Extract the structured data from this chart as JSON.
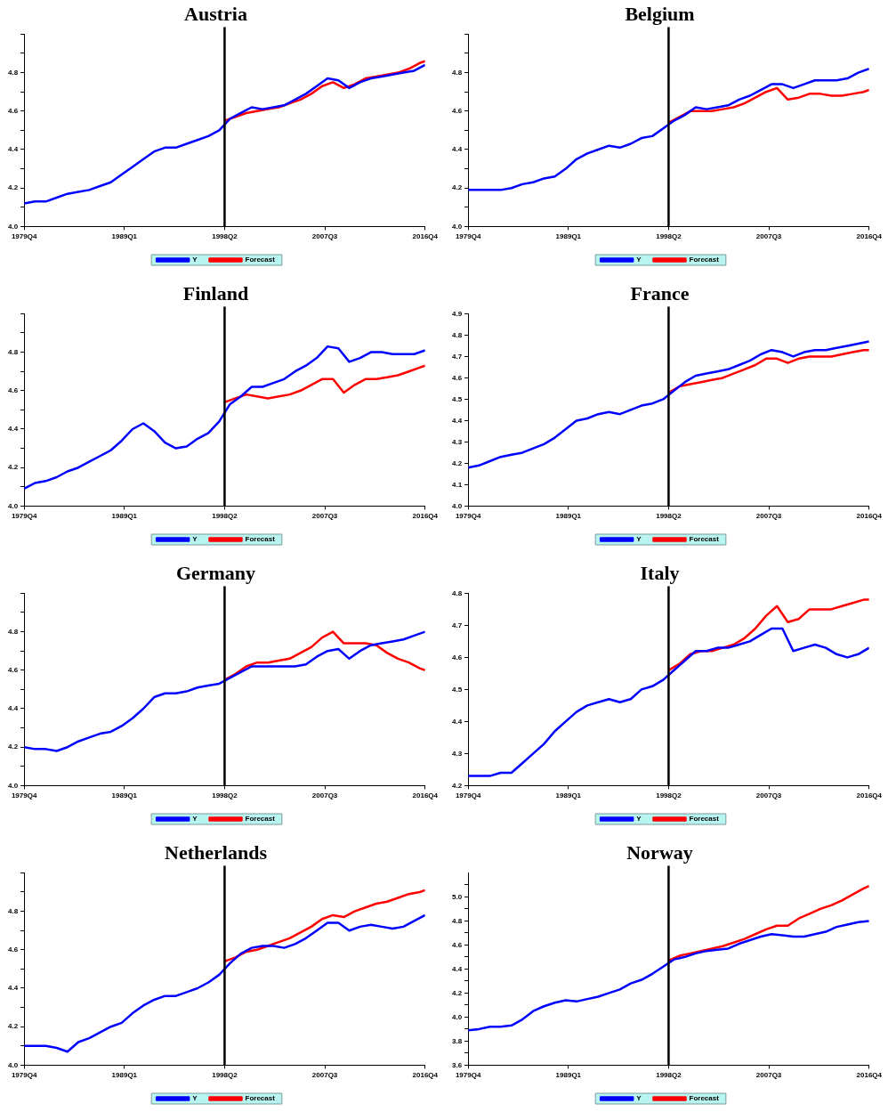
{
  "chart_data": [
    {
      "type": "line",
      "title": "Austria",
      "x": [
        "1979-10",
        "1980-10",
        "1981-10",
        "1982-10",
        "1983-10",
        "1984-10",
        "1985-10",
        "1986-10",
        "1987-10",
        "1988-10",
        "1989-10",
        "1990-10",
        "1991-10",
        "1992-10",
        "1993-10",
        "1994-10",
        "1995-10",
        "1996-10",
        "1997-10",
        "1998-10",
        "1999-10",
        "2000-10",
        "2001-10",
        "2002-10",
        "2003-10",
        "2004-10",
        "2005-10",
        "2006-10",
        "2007-10",
        "2008-10",
        "2009-10",
        "2010-10",
        "2011-10",
        "2012-10",
        "2013-10",
        "2014-10",
        "2015-10",
        "2016-10"
      ],
      "xlim": [
        "1979-10",
        "2016-10"
      ],
      "xticks": [
        {
          "value": "1979-10",
          "label": "1979Q4"
        },
        {
          "value": "1989-01",
          "label": "1989Q1"
        },
        {
          "value": "1998-04",
          "label": "1998Q2"
        },
        {
          "value": "2007-07",
          "label": "2007Q3"
        },
        {
          "value": "2016-10",
          "label": "2016Q4"
        }
      ],
      "ylim": [
        4,
        5
      ],
      "yticks": [
        {
          "value": 4,
          "label": "4.0"
        },
        {
          "value": 4.1,
          "label": null
        },
        4.2,
        {
          "value": 4.3,
          "label": null
        },
        4.4,
        {
          "value": 4.5,
          "label": null
        },
        4.6,
        {
          "value": 4.7,
          "label": null
        },
        4.8,
        {
          "value": 4.9,
          "label": null
        },
        {
          "value": 5,
          "label": null
        }
      ],
      "grid": false,
      "legend": "bottom",
      "marker": "none",
      "line_style": "solid",
      "ref_lines": [
        {
          "axis": "x",
          "value": "1998-04",
          "color": "#000000"
        }
      ],
      "series": [
        {
          "name": "Y",
          "color": "#0000ff",
          "values": [
            4.12,
            4.13,
            4.13,
            4.15,
            4.17,
            4.18,
            4.19,
            4.21,
            4.23,
            4.27,
            4.31,
            4.35,
            4.39,
            4.41,
            4.41,
            4.43,
            4.45,
            4.47,
            4.5,
            4.56,
            4.59,
            4.62,
            4.61,
            4.62,
            4.63,
            4.66,
            4.69,
            4.73,
            4.77,
            4.76,
            4.72,
            4.75,
            4.77,
            4.78,
            4.79,
            4.8,
            4.81,
            4.84
          ]
        },
        {
          "name": "Forecast",
          "color": "#ff0000",
          "x": [
            "1998-04",
            "1999-04",
            "2000-04",
            "2001-04",
            "2002-04",
            "2003-04",
            "2004-04",
            "2005-04",
            "2006-04",
            "2007-04",
            "2008-04",
            "2009-04",
            "2010-04",
            "2011-04",
            "2012-04",
            "2013-04",
            "2014-04",
            "2015-04",
            "2016-04",
            "2016-10"
          ],
          "values": [
            4.55,
            4.57,
            4.59,
            4.6,
            4.61,
            4.62,
            4.64,
            4.66,
            4.69,
            4.73,
            4.75,
            4.72,
            4.74,
            4.77,
            4.78,
            4.79,
            4.8,
            4.82,
            4.85,
            4.86
          ]
        }
      ]
    },
    {
      "type": "line",
      "title": "Belgium",
      "x": [
        "1979-10",
        "1980-10",
        "1981-10",
        "1982-10",
        "1983-10",
        "1984-10",
        "1985-10",
        "1986-10",
        "1987-10",
        "1988-10",
        "1989-10",
        "1990-10",
        "1991-10",
        "1992-10",
        "1993-10",
        "1994-10",
        "1995-10",
        "1996-10",
        "1997-10",
        "1998-10",
        "1999-10",
        "2000-10",
        "2001-10",
        "2002-10",
        "2003-10",
        "2004-10",
        "2005-10",
        "2006-10",
        "2007-10",
        "2008-10",
        "2009-10",
        "2010-10",
        "2011-10",
        "2012-10",
        "2013-10",
        "2014-10",
        "2015-10",
        "2016-10"
      ],
      "xlim": [
        "1979-10",
        "2016-10"
      ],
      "xticks": [
        {
          "value": "1979-10",
          "label": "1979Q4"
        },
        {
          "value": "1989-01",
          "label": "1989Q1"
        },
        {
          "value": "1998-04",
          "label": "1998Q2"
        },
        {
          "value": "2007-07",
          "label": "2007Q3"
        },
        {
          "value": "2016-10",
          "label": "2016Q4"
        }
      ],
      "ylim": [
        4,
        5
      ],
      "yticks": [
        {
          "value": 4,
          "label": "4.0"
        },
        {
          "value": 4.1,
          "label": null
        },
        4.2,
        {
          "value": 4.3,
          "label": null
        },
        4.4,
        {
          "value": 4.5,
          "label": null
        },
        4.6,
        {
          "value": 4.7,
          "label": null
        },
        4.8,
        {
          "value": 4.9,
          "label": null
        },
        {
          "value": 5,
          "label": null
        }
      ],
      "grid": false,
      "legend": "bottom",
      "marker": "none",
      "line_style": "solid",
      "ref_lines": [
        {
          "axis": "x",
          "value": "1998-04",
          "color": "#000000"
        }
      ],
      "series": [
        {
          "name": "Y",
          "color": "#0000ff",
          "values": [
            4.19,
            4.19,
            4.19,
            4.19,
            4.2,
            4.22,
            4.23,
            4.25,
            4.26,
            4.3,
            4.35,
            4.38,
            4.4,
            4.42,
            4.41,
            4.43,
            4.46,
            4.47,
            4.51,
            4.55,
            4.58,
            4.62,
            4.61,
            4.62,
            4.63,
            4.66,
            4.68,
            4.71,
            4.74,
            4.74,
            4.72,
            4.74,
            4.76,
            4.76,
            4.76,
            4.77,
            4.8,
            4.82
          ]
        },
        {
          "name": "Forecast",
          "color": "#ff0000",
          "x": [
            "1998-04",
            "1999-04",
            "2000-04",
            "2001-04",
            "2002-04",
            "2003-04",
            "2004-04",
            "2005-04",
            "2006-04",
            "2007-04",
            "2008-04",
            "2009-04",
            "2010-04",
            "2011-04",
            "2012-04",
            "2013-04",
            "2014-04",
            "2015-04",
            "2016-04",
            "2016-10"
          ],
          "values": [
            4.54,
            4.57,
            4.6,
            4.6,
            4.6,
            4.61,
            4.62,
            4.64,
            4.67,
            4.7,
            4.72,
            4.66,
            4.67,
            4.69,
            4.69,
            4.68,
            4.68,
            4.69,
            4.7,
            4.71
          ]
        }
      ]
    },
    {
      "type": "line",
      "title": "Finland",
      "x": [
        "1979-10",
        "1980-10",
        "1981-10",
        "1982-10",
        "1983-10",
        "1984-10",
        "1985-10",
        "1986-10",
        "1987-10",
        "1988-10",
        "1989-10",
        "1990-10",
        "1991-10",
        "1992-10",
        "1993-10",
        "1994-10",
        "1995-10",
        "1996-10",
        "1997-10",
        "1998-10",
        "1999-10",
        "2000-10",
        "2001-10",
        "2002-10",
        "2003-10",
        "2004-10",
        "2005-10",
        "2006-10",
        "2007-10",
        "2008-10",
        "2009-10",
        "2010-10",
        "2011-10",
        "2012-10",
        "2013-10",
        "2014-10",
        "2015-10",
        "2016-10"
      ],
      "xlim": [
        "1979-10",
        "2016-10"
      ],
      "xticks": [
        {
          "value": "1979-10",
          "label": "1979Q4"
        },
        {
          "value": "1989-01",
          "label": "1989Q1"
        },
        {
          "value": "1998-04",
          "label": "1998Q2"
        },
        {
          "value": "2007-07",
          "label": "2007Q3"
        },
        {
          "value": "2016-10",
          "label": "2016Q4"
        }
      ],
      "ylim": [
        4,
        5
      ],
      "yticks": [
        {
          "value": 4,
          "label": "4.0"
        },
        {
          "value": 4.1,
          "label": null
        },
        4.2,
        {
          "value": 4.3,
          "label": null
        },
        4.4,
        {
          "value": 4.5,
          "label": null
        },
        4.6,
        {
          "value": 4.7,
          "label": null
        },
        4.8,
        {
          "value": 4.9,
          "label": null
        },
        {
          "value": 5,
          "label": null
        }
      ],
      "grid": false,
      "legend": "bottom",
      "marker": "none",
      "line_style": "solid",
      "ref_lines": [
        {
          "axis": "x",
          "value": "1998-04",
          "color": "#000000"
        }
      ],
      "series": [
        {
          "name": "Y",
          "color": "#0000ff",
          "values": [
            4.09,
            4.12,
            4.13,
            4.15,
            4.18,
            4.2,
            4.23,
            4.26,
            4.29,
            4.34,
            4.4,
            4.43,
            4.39,
            4.33,
            4.3,
            4.31,
            4.35,
            4.38,
            4.44,
            4.53,
            4.57,
            4.62,
            4.62,
            4.64,
            4.66,
            4.7,
            4.73,
            4.77,
            4.83,
            4.82,
            4.75,
            4.77,
            4.8,
            4.8,
            4.79,
            4.79,
            4.79,
            4.81
          ]
        },
        {
          "name": "Forecast",
          "color": "#ff0000",
          "x": [
            "1998-04",
            "1999-04",
            "2000-04",
            "2001-04",
            "2002-04",
            "2003-04",
            "2004-04",
            "2005-04",
            "2006-04",
            "2007-04",
            "2008-04",
            "2009-04",
            "2010-04",
            "2011-04",
            "2012-04",
            "2013-04",
            "2014-04",
            "2015-04",
            "2016-04",
            "2016-10"
          ],
          "values": [
            4.54,
            4.56,
            4.58,
            4.57,
            4.56,
            4.57,
            4.58,
            4.6,
            4.63,
            4.66,
            4.66,
            4.59,
            4.63,
            4.66,
            4.66,
            4.67,
            4.68,
            4.7,
            4.72,
            4.73
          ]
        }
      ]
    },
    {
      "type": "line",
      "title": "France",
      "x": [
        "1979-10",
        "1980-10",
        "1981-10",
        "1982-10",
        "1983-10",
        "1984-10",
        "1985-10",
        "1986-10",
        "1987-10",
        "1988-10",
        "1989-10",
        "1990-10",
        "1991-10",
        "1992-10",
        "1993-10",
        "1994-10",
        "1995-10",
        "1996-10",
        "1997-10",
        "1998-10",
        "1999-10",
        "2000-10",
        "2001-10",
        "2002-10",
        "2003-10",
        "2004-10",
        "2005-10",
        "2006-10",
        "2007-10",
        "2008-10",
        "2009-10",
        "2010-10",
        "2011-10",
        "2012-10",
        "2013-10",
        "2014-10",
        "2015-10",
        "2016-10"
      ],
      "xlim": [
        "1979-10",
        "2016-10"
      ],
      "xticks": [
        {
          "value": "1979-10",
          "label": "1979Q4"
        },
        {
          "value": "1989-01",
          "label": "1989Q1"
        },
        {
          "value": "1998-04",
          "label": "1998Q2"
        },
        {
          "value": "2007-07",
          "label": "2007Q3"
        },
        {
          "value": "2016-10",
          "label": "2016Q4"
        }
      ],
      "ylim": [
        4,
        4.9
      ],
      "yticks": [
        {
          "value": 4,
          "label": "4.0"
        },
        4.1,
        4.2,
        4.3,
        4.4,
        4.5,
        4.6,
        4.7,
        4.8,
        4.9
      ],
      "grid": false,
      "legend": "bottom",
      "marker": "none",
      "line_style": "solid",
      "ref_lines": [
        {
          "axis": "x",
          "value": "1998-04",
          "color": "#000000"
        }
      ],
      "series": [
        {
          "name": "Y",
          "color": "#0000ff",
          "values": [
            4.18,
            4.19,
            4.21,
            4.23,
            4.24,
            4.25,
            4.27,
            4.29,
            4.32,
            4.36,
            4.4,
            4.41,
            4.43,
            4.44,
            4.43,
            4.45,
            4.47,
            4.48,
            4.5,
            4.54,
            4.58,
            4.61,
            4.62,
            4.63,
            4.64,
            4.66,
            4.68,
            4.71,
            4.73,
            4.72,
            4.7,
            4.72,
            4.73,
            4.73,
            4.74,
            4.75,
            4.76,
            4.77
          ]
        },
        {
          "name": "Forecast",
          "color": "#ff0000",
          "x": [
            "1998-04",
            "1999-04",
            "2000-04",
            "2001-04",
            "2002-04",
            "2003-04",
            "2004-04",
            "2005-04",
            "2006-04",
            "2007-04",
            "2008-04",
            "2009-04",
            "2010-04",
            "2011-04",
            "2012-04",
            "2013-04",
            "2014-04",
            "2015-04",
            "2016-04",
            "2016-10"
          ],
          "values": [
            4.53,
            4.56,
            4.57,
            4.58,
            4.59,
            4.6,
            4.62,
            4.64,
            4.66,
            4.69,
            4.69,
            4.67,
            4.69,
            4.7,
            4.7,
            4.7,
            4.71,
            4.72,
            4.73,
            4.73
          ]
        }
      ]
    },
    {
      "type": "line",
      "title": "Germany",
      "x": [
        "1979-10",
        "1980-10",
        "1981-10",
        "1982-10",
        "1983-10",
        "1984-10",
        "1985-10",
        "1986-10",
        "1987-10",
        "1988-10",
        "1989-10",
        "1990-10",
        "1991-10",
        "1992-10",
        "1993-10",
        "1994-10",
        "1995-10",
        "1996-10",
        "1997-10",
        "1998-10",
        "1999-10",
        "2000-10",
        "2001-10",
        "2002-10",
        "2003-10",
        "2004-10",
        "2005-10",
        "2006-10",
        "2007-10",
        "2008-10",
        "2009-10",
        "2010-10",
        "2011-10",
        "2012-10",
        "2013-10",
        "2014-10",
        "2015-10",
        "2016-10"
      ],
      "xlim": [
        "1979-10",
        "2016-10"
      ],
      "xticks": [
        {
          "value": "1979-10",
          "label": "1979Q4"
        },
        {
          "value": "1989-01",
          "label": "1989Q1"
        },
        {
          "value": "1998-04",
          "label": "1998Q2"
        },
        {
          "value": "2007-07",
          "label": "2007Q3"
        },
        {
          "value": "2016-10",
          "label": "2016Q4"
        }
      ],
      "ylim": [
        4,
        5
      ],
      "yticks": [
        {
          "value": 4,
          "label": "4.0"
        },
        {
          "value": 4.1,
          "label": null
        },
        4.2,
        {
          "value": 4.3,
          "label": null
        },
        4.4,
        {
          "value": 4.5,
          "label": null
        },
        4.6,
        {
          "value": 4.7,
          "label": null
        },
        4.8,
        {
          "value": 4.9,
          "label": null
        },
        {
          "value": 5,
          "label": null
        }
      ],
      "grid": false,
      "legend": "bottom",
      "marker": "none",
      "line_style": "solid",
      "ref_lines": [
        {
          "axis": "x",
          "value": "1998-04",
          "color": "#000000"
        }
      ],
      "series": [
        {
          "name": "Y",
          "color": "#0000ff",
          "values": [
            4.2,
            4.19,
            4.19,
            4.18,
            4.2,
            4.23,
            4.25,
            4.27,
            4.28,
            4.31,
            4.35,
            4.4,
            4.46,
            4.48,
            4.48,
            4.49,
            4.51,
            4.52,
            4.53,
            4.56,
            4.59,
            4.62,
            4.62,
            4.62,
            4.62,
            4.62,
            4.63,
            4.67,
            4.7,
            4.71,
            4.66,
            4.7,
            4.73,
            4.74,
            4.75,
            4.76,
            4.78,
            4.8
          ]
        },
        {
          "name": "Forecast",
          "color": "#ff0000",
          "x": [
            "1998-04",
            "1999-04",
            "2000-04",
            "2001-04",
            "2002-04",
            "2003-04",
            "2004-04",
            "2005-04",
            "2006-04",
            "2007-04",
            "2008-04",
            "2009-04",
            "2010-04",
            "2011-04",
            "2012-04",
            "2013-04",
            "2014-04",
            "2015-04",
            "2016-04",
            "2016-10"
          ],
          "values": [
            4.55,
            4.58,
            4.62,
            4.64,
            4.64,
            4.65,
            4.66,
            4.69,
            4.72,
            4.77,
            4.8,
            4.74,
            4.74,
            4.74,
            4.73,
            4.69,
            4.66,
            4.64,
            4.61,
            4.6
          ]
        }
      ]
    },
    {
      "type": "line",
      "title": "Italy",
      "x": [
        "1979-10",
        "1980-10",
        "1981-10",
        "1982-10",
        "1983-10",
        "1984-10",
        "1985-10",
        "1986-10",
        "1987-10",
        "1988-10",
        "1989-10",
        "1990-10",
        "1991-10",
        "1992-10",
        "1993-10",
        "1994-10",
        "1995-10",
        "1996-10",
        "1997-10",
        "1998-10",
        "1999-10",
        "2000-10",
        "2001-10",
        "2002-10",
        "2003-10",
        "2004-10",
        "2005-10",
        "2006-10",
        "2007-10",
        "2008-10",
        "2009-10",
        "2010-10",
        "2011-10",
        "2012-10",
        "2013-10",
        "2014-10",
        "2015-10",
        "2016-10"
      ],
      "xlim": [
        "1979-10",
        "2016-10"
      ],
      "xticks": [
        {
          "value": "1979-10",
          "label": "1979Q4"
        },
        {
          "value": "1989-01",
          "label": "1989Q1"
        },
        {
          "value": "1998-04",
          "label": "1998Q2"
        },
        {
          "value": "2007-07",
          "label": "2007Q3"
        },
        {
          "value": "2016-10",
          "label": "2016Q4"
        }
      ],
      "ylim": [
        4.2,
        4.8
      ],
      "yticks": [
        4.2,
        4.3,
        4.4,
        4.5,
        4.6,
        4.7,
        4.8
      ],
      "grid": false,
      "legend": "bottom",
      "marker": "none",
      "line_style": "solid",
      "ref_lines": [
        {
          "axis": "x",
          "value": "1998-04",
          "color": "#000000"
        }
      ],
      "series": [
        {
          "name": "Y",
          "color": "#0000ff",
          "values": [
            4.23,
            4.23,
            4.23,
            4.24,
            4.24,
            4.27,
            4.3,
            4.33,
            4.37,
            4.4,
            4.43,
            4.45,
            4.46,
            4.47,
            4.46,
            4.47,
            4.5,
            4.51,
            4.53,
            4.56,
            4.59,
            4.62,
            4.62,
            4.63,
            4.63,
            4.64,
            4.65,
            4.67,
            4.69,
            4.69,
            4.62,
            4.63,
            4.64,
            4.63,
            4.61,
            4.6,
            4.61,
            4.63
          ]
        },
        {
          "name": "Forecast",
          "color": "#ff0000",
          "x": [
            "1998-04",
            "1999-04",
            "2000-04",
            "2001-04",
            "2002-04",
            "2003-04",
            "2004-04",
            "2005-04",
            "2006-04",
            "2007-04",
            "2008-04",
            "2009-04",
            "2010-04",
            "2011-04",
            "2012-04",
            "2013-04",
            "2014-04",
            "2015-04",
            "2016-04",
            "2016-10"
          ],
          "values": [
            4.56,
            4.58,
            4.61,
            4.62,
            4.62,
            4.63,
            4.64,
            4.66,
            4.69,
            4.73,
            4.76,
            4.71,
            4.72,
            4.75,
            4.75,
            4.75,
            4.76,
            4.77,
            4.78,
            4.78
          ]
        }
      ]
    },
    {
      "type": "line",
      "title": "Netherlands",
      "x": [
        "1979-10",
        "1980-10",
        "1981-10",
        "1982-10",
        "1983-10",
        "1984-10",
        "1985-10",
        "1986-10",
        "1987-10",
        "1988-10",
        "1989-10",
        "1990-10",
        "1991-10",
        "1992-10",
        "1993-10",
        "1994-10",
        "1995-10",
        "1996-10",
        "1997-10",
        "1998-10",
        "1999-10",
        "2000-10",
        "2001-10",
        "2002-10",
        "2003-10",
        "2004-10",
        "2005-10",
        "2006-10",
        "2007-10",
        "2008-10",
        "2009-10",
        "2010-10",
        "2011-10",
        "2012-10",
        "2013-10",
        "2014-10",
        "2015-10",
        "2016-10"
      ],
      "xlim": [
        "1979-10",
        "2016-10"
      ],
      "xticks": [
        {
          "value": "1979-10",
          "label": "1979Q4"
        },
        {
          "value": "1989-01",
          "label": "1989Q1"
        },
        {
          "value": "1998-04",
          "label": "1998Q2"
        },
        {
          "value": "2007-07",
          "label": "2007Q3"
        },
        {
          "value": "2016-10",
          "label": "2016Q4"
        }
      ],
      "ylim": [
        4,
        5
      ],
      "yticks": [
        {
          "value": 4,
          "label": "4.0"
        },
        {
          "value": 4.1,
          "label": null
        },
        4.2,
        {
          "value": 4.3,
          "label": null
        },
        4.4,
        {
          "value": 4.5,
          "label": null
        },
        4.6,
        {
          "value": 4.7,
          "label": null
        },
        4.8,
        {
          "value": 4.9,
          "label": null
        },
        {
          "value": 5,
          "label": null
        }
      ],
      "grid": false,
      "legend": "bottom",
      "marker": "none",
      "line_style": "solid",
      "ref_lines": [
        {
          "axis": "x",
          "value": "1998-04",
          "color": "#000000"
        }
      ],
      "series": [
        {
          "name": "Y",
          "color": "#0000ff",
          "values": [
            4.1,
            4.1,
            4.1,
            4.09,
            4.07,
            4.12,
            4.14,
            4.17,
            4.2,
            4.22,
            4.27,
            4.31,
            4.34,
            4.36,
            4.36,
            4.38,
            4.4,
            4.43,
            4.47,
            4.53,
            4.58,
            4.61,
            4.62,
            4.62,
            4.61,
            4.63,
            4.66,
            4.7,
            4.74,
            4.74,
            4.7,
            4.72,
            4.73,
            4.72,
            4.71,
            4.72,
            4.75,
            4.78
          ]
        },
        {
          "name": "Forecast",
          "color": "#ff0000",
          "x": [
            "1998-04",
            "1999-04",
            "2000-04",
            "2001-04",
            "2002-04",
            "2003-04",
            "2004-04",
            "2005-04",
            "2006-04",
            "2007-04",
            "2008-04",
            "2009-04",
            "2010-04",
            "2011-04",
            "2012-04",
            "2013-04",
            "2014-04",
            "2015-04",
            "2016-04",
            "2016-10"
          ],
          "values": [
            4.54,
            4.56,
            4.59,
            4.6,
            4.62,
            4.64,
            4.66,
            4.69,
            4.72,
            4.76,
            4.78,
            4.77,
            4.8,
            4.82,
            4.84,
            4.85,
            4.87,
            4.89,
            4.9,
            4.91
          ]
        }
      ]
    },
    {
      "type": "line",
      "title": "Norway",
      "x": [
        "1979-10",
        "1980-10",
        "1981-10",
        "1982-10",
        "1983-10",
        "1984-10",
        "1985-10",
        "1986-10",
        "1987-10",
        "1988-10",
        "1989-10",
        "1990-10",
        "1991-10",
        "1992-10",
        "1993-10",
        "1994-10",
        "1995-10",
        "1996-10",
        "1997-10",
        "1998-10",
        "1999-10",
        "2000-10",
        "2001-10",
        "2002-10",
        "2003-10",
        "2004-10",
        "2005-10",
        "2006-10",
        "2007-10",
        "2008-10",
        "2009-10",
        "2010-10",
        "2011-10",
        "2012-10",
        "2013-10",
        "2014-10",
        "2015-10",
        "2016-10"
      ],
      "xlim": [
        "1979-10",
        "2016-10"
      ],
      "xticks": [
        {
          "value": "1979-10",
          "label": "1979Q4"
        },
        {
          "value": "1989-01",
          "label": "1989Q1"
        },
        {
          "value": "1998-04",
          "label": "1998Q2"
        },
        {
          "value": "2007-07",
          "label": "2007Q3"
        },
        {
          "value": "2016-10",
          "label": "2016Q4"
        }
      ],
      "ylim": [
        3.6,
        5.2
      ],
      "yticks": [
        3.6,
        {
          "value": 3.7,
          "label": null
        },
        3.8,
        {
          "value": 3.9,
          "label": null
        },
        {
          "value": 4,
          "label": "4.0"
        },
        {
          "value": 4.1,
          "label": null
        },
        4.2,
        {
          "value": 4.3,
          "label": null
        },
        4.4,
        {
          "value": 4.5,
          "label": null
        },
        4.6,
        {
          "value": 4.7,
          "label": null
        },
        4.8,
        {
          "value": 4.9,
          "label": null
        },
        {
          "value": 5,
          "label": "5.0"
        },
        {
          "value": 5.1,
          "label": null
        }
      ],
      "grid": false,
      "legend": "bottom",
      "marker": "none",
      "line_style": "solid",
      "ref_lines": [
        {
          "axis": "x",
          "value": "1998-04",
          "color": "#000000"
        }
      ],
      "series": [
        {
          "name": "Y",
          "color": "#0000ff",
          "values": [
            3.89,
            3.9,
            3.92,
            3.92,
            3.93,
            3.98,
            4.05,
            4.09,
            4.12,
            4.14,
            4.13,
            4.15,
            4.17,
            4.2,
            4.23,
            4.28,
            4.31,
            4.36,
            4.42,
            4.48,
            4.5,
            4.53,
            4.55,
            4.56,
            4.57,
            4.61,
            4.64,
            4.67,
            4.69,
            4.68,
            4.67,
            4.67,
            4.69,
            4.71,
            4.75,
            4.77,
            4.79,
            4.8
          ]
        },
        {
          "name": "Forecast",
          "color": "#ff0000",
          "x": [
            "1998-04",
            "1999-04",
            "2000-04",
            "2001-04",
            "2002-04",
            "2003-04",
            "2004-04",
            "2005-04",
            "2006-04",
            "2007-04",
            "2008-04",
            "2009-04",
            "2010-04",
            "2011-04",
            "2012-04",
            "2013-04",
            "2014-04",
            "2015-04",
            "2016-04",
            "2016-10"
          ],
          "values": [
            4.47,
            4.51,
            4.53,
            4.55,
            4.57,
            4.59,
            4.62,
            4.65,
            4.69,
            4.73,
            4.76,
            4.76,
            4.82,
            4.86,
            4.9,
            4.93,
            4.97,
            5.02,
            5.07,
            5.09
          ]
        }
      ]
    }
  ]
}
